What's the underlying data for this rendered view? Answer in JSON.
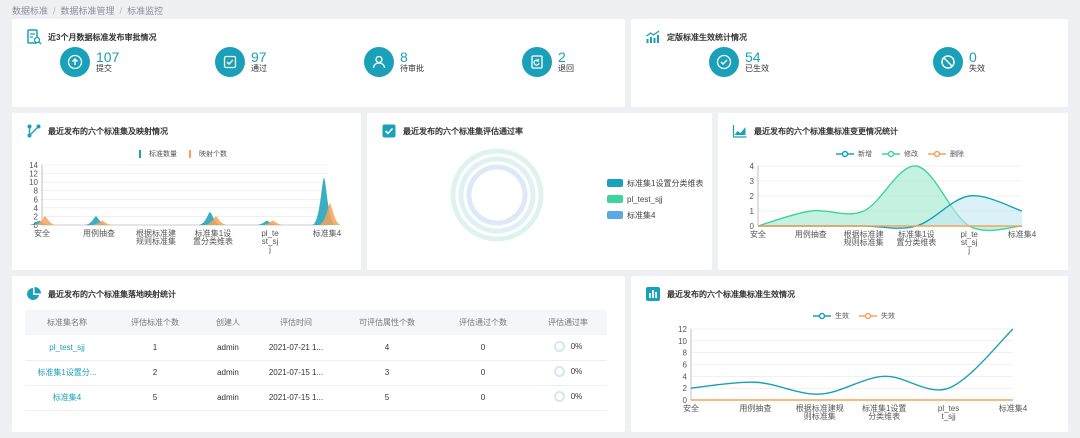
{
  "breadcrumb": [
    "数据标准",
    "数据标准管理",
    "标准监控"
  ],
  "colors": {
    "teal": "#1aa0b8",
    "orange": "#f5a35a",
    "green": "#3fd3a0",
    "blue": "#5aa9e6"
  },
  "approval": {
    "title": "近3个月数据标准发布审批情况",
    "stats": [
      {
        "value": "107",
        "label": "提交",
        "icon": "upload-icon"
      },
      {
        "value": "97",
        "label": "通过",
        "icon": "check-square-icon"
      },
      {
        "value": "8",
        "label": "待审批",
        "icon": "user-icon"
      },
      {
        "value": "2",
        "label": "退回",
        "icon": "return-icon"
      }
    ]
  },
  "effective": {
    "title": "定版标准生效统计情况",
    "stats": [
      {
        "value": "54",
        "label": "已生效",
        "icon": "check-circle-icon"
      },
      {
        "value": "0",
        "label": "失效",
        "icon": "forbidden-icon"
      }
    ]
  },
  "mapping_chart": {
    "title": "最近发布的六个标准集及映射情况",
    "chart_data": {
      "type": "area",
      "categories": [
        "安全",
        "用例抽查",
        "根据标准建规则标准集",
        "标准集1设置分类维表",
        "pl_test_sjj",
        "标准集4"
      ],
      "category_lines": [
        [
          "安全"
        ],
        [
          "用例抽查"
        ],
        [
          "根据标准建",
          "规则标准集"
        ],
        [
          "标准集1设",
          "置分类维表"
        ],
        [
          "pl_te",
          "st_sj",
          "j"
        ],
        [
          "标准集4"
        ]
      ],
      "series": [
        {
          "name": "标准数量",
          "values": [
            1,
            2,
            0,
            3,
            1,
            11
          ]
        },
        {
          "name": "映射个数",
          "values": [
            2,
            1,
            0,
            2,
            1,
            5
          ]
        }
      ],
      "yticks": [
        "0",
        "2",
        "4",
        "6",
        "8",
        "10",
        "12",
        "14"
      ],
      "ylim": [
        0,
        14
      ]
    }
  },
  "pass_chart": {
    "title": "最近发布的六个标准集评估通过率",
    "legend": [
      "标准集1设置分类维表",
      "pl_test_sjj",
      "标准集4"
    ],
    "legend_colors": [
      "#1aa0b8",
      "#3fd3a0",
      "#5aa9e6"
    ]
  },
  "change_chart": {
    "title": "最近发布的六个标准集标准变更情况统计",
    "chart_data": {
      "type": "area",
      "categories": [
        "安全",
        "用例抽查",
        "根据标准建规则标准集",
        "标准集1设置分类维表",
        "pl_test_sjj",
        "标准集4"
      ],
      "category_lines": [
        [
          "安全"
        ],
        [
          "用例抽查"
        ],
        [
          "根据标准建",
          "规则标准集"
        ],
        [
          "标准集1设",
          "置分类维表"
        ],
        [
          "pl_te",
          "st_sj",
          "j"
        ],
        [
          "标准集4"
        ]
      ],
      "series": [
        {
          "name": "新增",
          "values": [
            0,
            0,
            0,
            0,
            2,
            1
          ]
        },
        {
          "name": "修改",
          "values": [
            0,
            1,
            1,
            4,
            0,
            0
          ]
        },
        {
          "name": "删除",
          "values": [
            0,
            0,
            0,
            0,
            0,
            0
          ]
        }
      ],
      "yticks": [
        "0",
        "1",
        "2",
        "3",
        "4"
      ],
      "ylim": [
        0,
        4
      ]
    }
  },
  "table_card": {
    "title": "最近发布的六个标准集落地映射统计",
    "headers": [
      "标准集名称",
      "评估标准个数",
      "创建人",
      "评估时间",
      "可评估属性个数",
      "评估通过个数",
      "评估通过率"
    ],
    "rows": [
      [
        "pl_test_sjj",
        "1",
        "admin",
        "2021-07-21 1...",
        "4",
        "0",
        "0%"
      ],
      [
        "标准集1设置分...",
        "2",
        "admin",
        "2021-07-15 1...",
        "3",
        "0",
        "0%"
      ],
      [
        "标准集4",
        "5",
        "admin",
        "2021-07-15 1...",
        "5",
        "0",
        "0%"
      ]
    ]
  },
  "effect_chart": {
    "title": "最近发布的六个标准集标准生效情况",
    "chart_data": {
      "type": "line",
      "categories": [
        "安全",
        "用例抽查",
        "根据标准建规则标准集",
        "标准集1设置分类维表",
        "pl_test_sjj",
        "标准集4"
      ],
      "category_lines": [
        [
          "安全"
        ],
        [
          "用例抽查"
        ],
        [
          "根据标准建规",
          "则标准集"
        ],
        [
          "标准集1设置",
          "分类维表"
        ],
        [
          "pl_tes",
          "t_sjj"
        ],
        [
          "标准集4"
        ]
      ],
      "series": [
        {
          "name": "生效",
          "values": [
            2,
            3,
            1,
            4,
            2,
            12
          ]
        },
        {
          "name": "失效",
          "values": [
            0,
            0,
            0,
            0,
            0,
            0
          ]
        }
      ],
      "yticks": [
        "0",
        "2",
        "4",
        "6",
        "8",
        "10",
        "12"
      ],
      "ylim": [
        0,
        12
      ]
    }
  }
}
